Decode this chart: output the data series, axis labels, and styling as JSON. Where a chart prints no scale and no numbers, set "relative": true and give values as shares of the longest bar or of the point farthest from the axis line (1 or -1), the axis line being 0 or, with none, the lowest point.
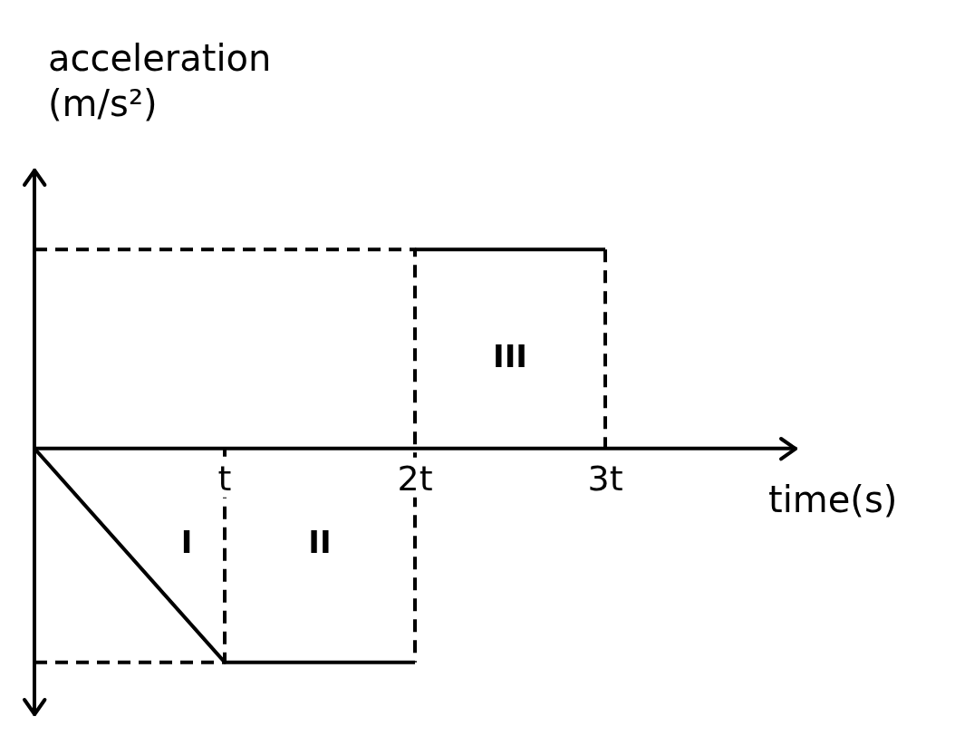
{
  "chart_data": {
    "type": "line",
    "relative": true,
    "xlabel": "time(s)",
    "ylabel": "acceleration (m/s²)",
    "xlim": [
      0,
      4
    ],
    "xticks": [
      {
        "value": 1,
        "label": "t"
      },
      {
        "value": 2,
        "label": "2t"
      },
      {
        "value": 3,
        "label": "3t"
      }
    ],
    "marker": "none",
    "annotations": [
      "I",
      "II",
      "III"
    ],
    "series": [
      {
        "color": "#000000",
        "x": [
          0,
          1,
          2
        ],
        "values": [
          0,
          -1,
          -1
        ]
      },
      {
        "color": "#000000",
        "x": [
          2,
          3
        ],
        "values": [
          0.93,
          0.93
        ]
      },
      {
        "color": "#000000",
        "line_style": "dashed",
        "x": [
          0,
          1,
          1
        ],
        "values": [
          -1,
          -1,
          0
        ]
      },
      {
        "color": "#000000",
        "line_style": "dashed",
        "x": [
          0,
          2,
          2
        ],
        "values": [
          0.93,
          0.93,
          -1
        ]
      },
      {
        "color": "#000000",
        "line_style": "dashed",
        "x": [
          3,
          3
        ],
        "values": [
          0.93,
          0
        ]
      }
    ]
  }
}
